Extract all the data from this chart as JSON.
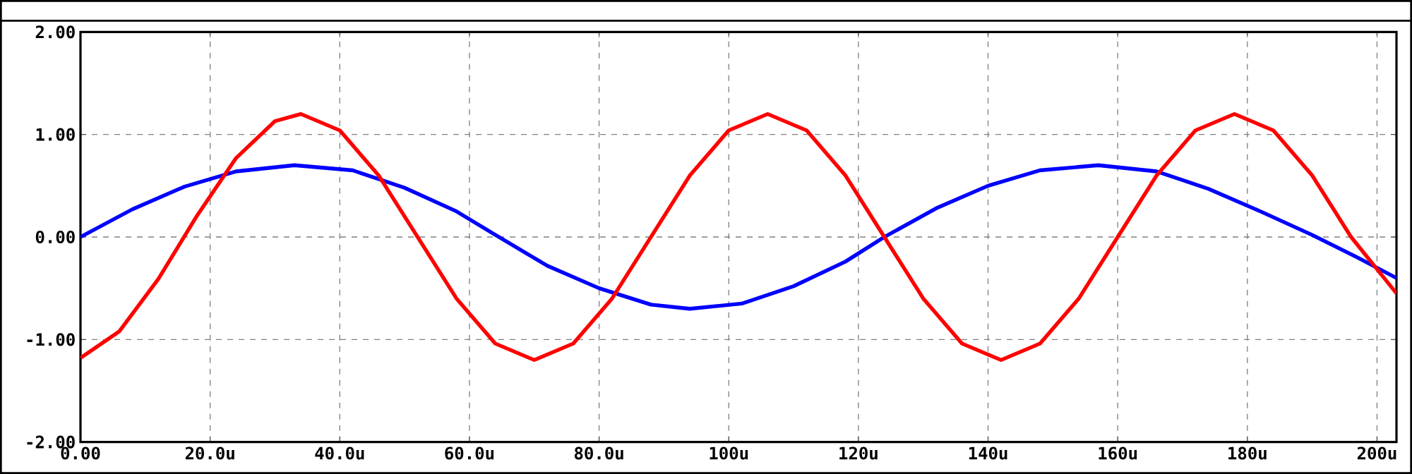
{
  "chart_data": {
    "type": "line",
    "xlim": [
      0,
      203
    ],
    "ylim": [
      -2,
      2
    ],
    "xticks": [
      {
        "value": 0,
        "label": "0.00"
      },
      {
        "value": 20,
        "label": "20.0u"
      },
      {
        "value": 40,
        "label": "40.0u"
      },
      {
        "value": 60,
        "label": "60.0u"
      },
      {
        "value": 80,
        "label": "80.0u"
      },
      {
        "value": 100,
        "label": "100u"
      },
      {
        "value": 120,
        "label": "120u"
      },
      {
        "value": 140,
        "label": "140u"
      },
      {
        "value": 160,
        "label": "160u"
      },
      {
        "value": 180,
        "label": "180u"
      },
      {
        "value": 200,
        "label": "200u"
      }
    ],
    "yticks": [
      {
        "value": -2,
        "label": "-2.00"
      },
      {
        "value": -1,
        "label": "-1.00"
      },
      {
        "value": 0,
        "label": "0.00"
      },
      {
        "value": 1,
        "label": "1.00"
      },
      {
        "value": 2,
        "label": "2.00"
      }
    ],
    "grid": true,
    "marker": "none",
    "line_style": "solid",
    "series": [
      {
        "color": "#0000ff",
        "x": [
          0,
          8,
          16,
          24,
          33,
          42,
          50,
          58,
          64,
          72,
          80,
          88,
          94,
          102,
          110,
          118,
          124,
          132,
          140,
          148,
          157,
          166,
          174,
          182,
          190,
          197,
          203
        ],
        "values": [
          0,
          0.27,
          0.49,
          0.64,
          0.7,
          0.65,
          0.48,
          0.25,
          0.02,
          -0.28,
          -0.5,
          -0.66,
          -0.7,
          -0.65,
          -0.48,
          -0.24,
          0,
          0.28,
          0.5,
          0.65,
          0.7,
          0.64,
          0.47,
          0.25,
          0.02,
          -0.2,
          -0.4
        ]
      },
      {
        "color": "#ff0000",
        "x": [
          0,
          6,
          12,
          18,
          24,
          30,
          34,
          40,
          46,
          52,
          58,
          64,
          70,
          76,
          82,
          88,
          94,
          100,
          106,
          112,
          118,
          124,
          130,
          136,
          142,
          148,
          154,
          160,
          166,
          172,
          178,
          184,
          190,
          196,
          203
        ],
        "values": [
          -1.18,
          -0.92,
          -0.41,
          0.21,
          0.77,
          1.13,
          1.2,
          1.04,
          0.6,
          0,
          -0.6,
          -1.04,
          -1.2,
          -1.04,
          -0.6,
          0,
          0.6,
          1.04,
          1.2,
          1.04,
          0.6,
          0,
          -0.6,
          -1.04,
          -1.2,
          -1.04,
          -0.6,
          0,
          0.6,
          1.04,
          1.2,
          1.04,
          0.6,
          0,
          -0.55
        ]
      }
    ]
  }
}
